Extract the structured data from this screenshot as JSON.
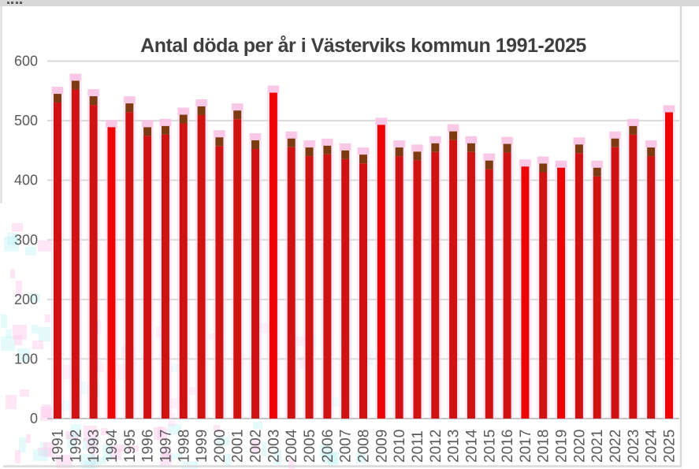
{
  "chart_data": {
    "type": "bar",
    "title": "Antal döda per år i Västerviks kommun 1991-2025",
    "xlabel": "",
    "ylabel": "",
    "categories": [
      "1991",
      "1992",
      "1993",
      "1994",
      "1995",
      "1996",
      "1997",
      "1998",
      "1999",
      "2000",
      "2001",
      "2002",
      "2003",
      "2004",
      "2005",
      "2006",
      "2007",
      "2008",
      "2009",
      "2010",
      "2011",
      "2012",
      "2013",
      "2014",
      "2015",
      "2016",
      "2017",
      "2018",
      "2019",
      "2020",
      "2021",
      "2022",
      "2023",
      "2024",
      "2025"
    ],
    "values": [
      545,
      567,
      541,
      489,
      529,
      489,
      491,
      510,
      524,
      472,
      517,
      467,
      547,
      470,
      455,
      458,
      450,
      443,
      493,
      455,
      448,
      462,
      482,
      462,
      433,
      461,
      423,
      428,
      421,
      460,
      421,
      470,
      491,
      455,
      514
    ],
    "ylim": [
      0,
      600
    ],
    "yticks": [
      0,
      100,
      200,
      300,
      400,
      500,
      600
    ],
    "grid": true,
    "legend": false,
    "colors": {
      "bar_red": "#cf1212",
      "bar_bright_red": "#ee0404",
      "bar_dark_cap": "#7e3a10",
      "halo_pink": "#f9d4ec",
      "halo_tip_pink": "#f9bfe4",
      "gridline": "#d9d9d9",
      "axis_line": "#c2c2c2",
      "tick_label": "#595959",
      "title": "#3f3f3f",
      "frame": "#d9d9d9",
      "window_strip": "#d8d8d8",
      "artifact_pink": "#ffc8ea",
      "artifact_cyan": "#c4f3f7"
    },
    "solid_bright_red_years": [
      "1994",
      "2003",
      "2009",
      "2017",
      "2019",
      "2025"
    ]
  }
}
